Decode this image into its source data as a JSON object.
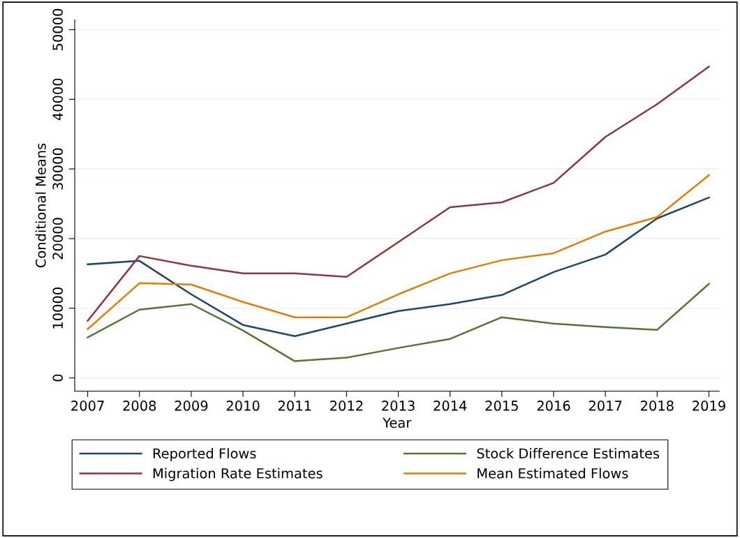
{
  "chart_data": {
    "type": "line",
    "xlabel": "Year",
    "ylabel": "Conditional Means",
    "x": [
      2007,
      2008,
      2009,
      2010,
      2011,
      2012,
      2013,
      2014,
      2015,
      2016,
      2017,
      2018,
      2019
    ],
    "series": [
      {
        "name": "Reported Flows",
        "color": "#1a476f",
        "values": [
          16300,
          16800,
          12000,
          7600,
          6000,
          7800,
          9600,
          10600,
          11900,
          15200,
          17700,
          22900,
          25900
        ]
      },
      {
        "name": "Migration Rate Estimates",
        "color": "#90353b",
        "values": [
          8200,
          17500,
          16100,
          15000,
          15000,
          14500,
          19500,
          24500,
          25200,
          28000,
          34600,
          39300,
          44700
        ]
      },
      {
        "name": "Stock Difference Estimates",
        "color": "#55752f",
        "values": [
          5800,
          9800,
          10600,
          6800,
          2400,
          2900,
          4300,
          5600,
          8700,
          7800,
          7300,
          6900,
          13500
        ]
      },
      {
        "name": "Mean Estimated Flows",
        "color": "#e37e00",
        "values": [
          7000,
          13600,
          13400,
          10900,
          8700,
          8700,
          12000,
          15000,
          16900,
          17900,
          21000,
          23100,
          29100
        ]
      }
    ],
    "xlim": [
      2006.75,
      2019.2
    ],
    "xticks": [
      2007,
      2008,
      2009,
      2010,
      2011,
      2012,
      2013,
      2014,
      2015,
      2016,
      2017,
      2018,
      2019
    ],
    "ylim": [
      -1900,
      51400
    ],
    "yticks": [
      0,
      10000,
      20000,
      30000,
      40000,
      50000
    ],
    "grid": "y",
    "legend": "bottom",
    "line_style": "solid",
    "marker": "none"
  }
}
